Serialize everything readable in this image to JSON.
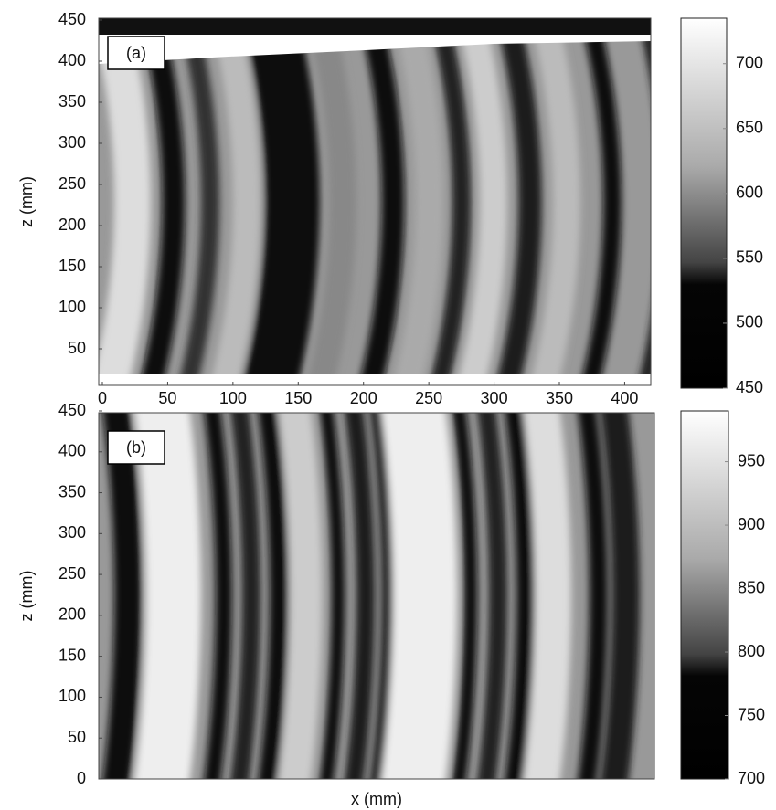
{
  "chart_data": [
    {
      "type": "heatmap",
      "label": "(a)",
      "y_label": "z (mm)",
      "colormap": "gray",
      "xlim": [
        0,
        420
      ],
      "xticks": [
        0,
        50,
        100,
        150,
        200,
        250,
        300,
        350,
        400
      ],
      "ylim": [
        0,
        450
      ],
      "yticks": [
        50,
        100,
        150,
        200,
        250,
        300,
        350,
        400,
        450
      ],
      "colorbar": {
        "lim": [
          450,
          735
        ],
        "ticks": [
          450,
          500,
          550,
          600,
          650,
          700
        ]
      }
    },
    {
      "type": "heatmap",
      "label": "(b)",
      "y_label": "z (mm)",
      "x_label": "x (mm)",
      "colormap": "gray",
      "xlim": [
        0,
        420
      ],
      "ylim": [
        0,
        450
      ],
      "yticks": [
        0,
        50,
        100,
        150,
        200,
        250,
        300,
        350,
        400,
        450
      ],
      "colorbar": {
        "lim": [
          700,
          990
        ],
        "ticks": [
          700,
          750,
          800,
          850,
          900,
          950
        ]
      }
    }
  ]
}
